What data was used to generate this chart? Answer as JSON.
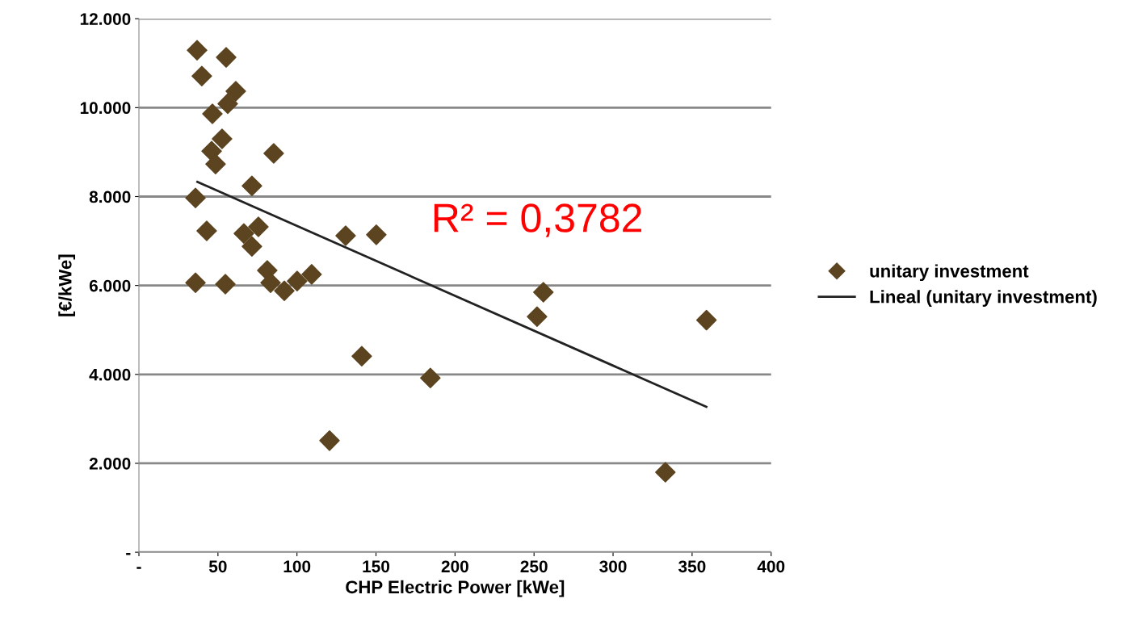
{
  "chart_data": {
    "type": "scatter",
    "xlabel": "CHP Electric Power [kWe]",
    "ylabel": "[€/kWe]",
    "xlim": [
      0,
      400
    ],
    "xticks": [
      {
        "value": 0,
        "label": "-"
      },
      50,
      100,
      150,
      200,
      250,
      300,
      350,
      400
    ],
    "ylim": [
      0,
      12000
    ],
    "yticks": [
      {
        "value": 0,
        "label": "-"
      },
      {
        "value": 2000,
        "label": "2.000"
      },
      {
        "value": 4000,
        "label": "4.000"
      },
      {
        "value": 6000,
        "label": "6.000"
      },
      {
        "value": 8000,
        "label": "8.000"
      },
      {
        "value": 10000,
        "label": "10.000"
      },
      {
        "value": 12000,
        "label": "12.000"
      }
    ],
    "grid": "y",
    "legend": "right",
    "annotations": [
      "R² = 0,3782"
    ],
    "series": [
      {
        "name": "unitary investment",
        "marker": "diamond",
        "color": "#5c4420",
        "x": [
          36.8,
          55.2,
          39.8,
          61.3,
          56.2,
          46.5,
          52.6,
          46,
          48.5,
          85.3,
          71.5,
          35.8,
          42.9,
          66.4,
          75.6,
          71.5,
          81.2,
          83.3,
          92,
          100.1,
          109.3,
          35.8,
          54.7,
          130.8,
          150.2,
          141,
          120.6,
          184.4,
          251.9,
          255.9,
          333.1,
          359.1
        ],
        "values": [
          11290,
          11130,
          10710,
          10370,
          10090,
          9860,
          9300,
          9020,
          8730,
          8970,
          8240,
          7970,
          7230,
          7170,
          7320,
          6880,
          6340,
          6060,
          5880,
          6100,
          6250,
          6060,
          6030,
          7120,
          7140,
          4410,
          2510,
          3920,
          5300,
          5850,
          1800,
          5220
        ]
      },
      {
        "name": "Lineal (unitary investment)",
        "type": "line",
        "color": "#222222",
        "x": [
          37,
          359
        ],
        "values": [
          8330,
          3270
        ]
      }
    ]
  }
}
